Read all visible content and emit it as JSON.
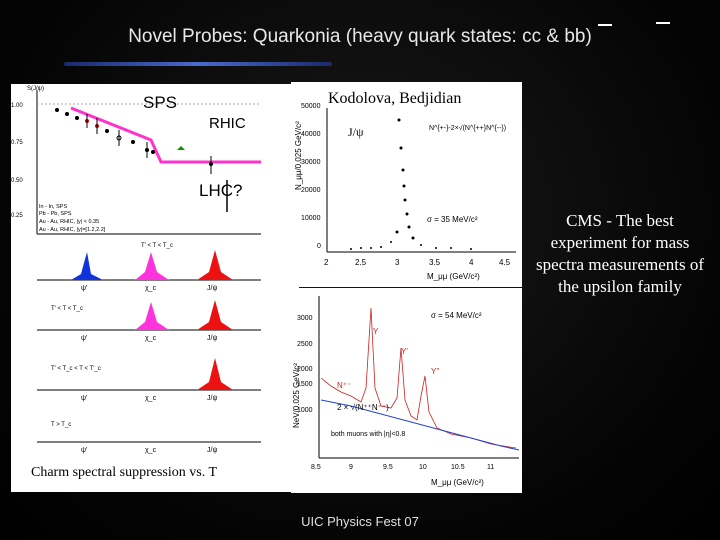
{
  "slide": {
    "title": "Novel Probes: Quarkonia (heavy quark states: cc & bb)",
    "footer": "UIC Physics Fest 07",
    "cms_note": "CMS - The best experiment for mass spectra measurements of the upsilon family"
  },
  "suppression_plot": {
    "ylabel": "S(J/ψ)",
    "labels": {
      "sps": "SPS",
      "rhic": "RHIC",
      "lhc": "LHC?"
    },
    "yticks": [
      "1.00",
      "0.75",
      "0.50",
      "0.25"
    ],
    "legend": [
      "In - In, SPS",
      "Pb - Pb, SPS",
      "Au - Au, RHIC, |y| < 0.35",
      "Au - Au, RHIC, |y|=[1.2,2.2]"
    ],
    "author_credit": "Kodolova, Bedjidian",
    "caption": "Charm spectral suppression vs. T",
    "rows": [
      {
        "title": "T' < T < T_c",
        "peaks": [
          "ψ'",
          "χ_c",
          "J/ψ"
        ]
      },
      {
        "title": "T' < T < T_c",
        "peaks": [
          "ψ'",
          "χ_c",
          "J/ψ"
        ]
      },
      {
        "title": "T' < T_c < T < T'_c",
        "peaks": [
          "ψ'",
          "χ_c",
          "J/ψ"
        ]
      },
      {
        "title": "T > T_c",
        "peaks": [
          "ψ'",
          "χ_c",
          "J/ψ"
        ]
      }
    ]
  },
  "jpsi_plot": {
    "ylabel": "N_μμ/0.025 GeV/c²",
    "xlabel": "M_μμ (GeV/c²)",
    "annotation": "J/ψ",
    "legend": "N^{+-}-2×√(N^{++}N^{--})",
    "sigma": "σ = 35 MeV/c²",
    "yticks": [
      "50000",
      "40000",
      "30000",
      "20000",
      "10000",
      "0"
    ],
    "xticks": [
      "2",
      "2.5",
      "3",
      "3.5",
      "4",
      "4.5"
    ]
  },
  "upsilon_plot": {
    "ylabel": "NeV/0.025 GeV/c²",
    "xlabel": "M_μμ (GeV/c²)",
    "sigma": "σ = 54 MeV/c²",
    "peaks": [
      "Y",
      "Y'",
      "Y''"
    ],
    "legend": [
      "N⁺⁻",
      "2 × √(N⁺⁺N⁻⁻)"
    ],
    "note": "both muons with |η|<0.8",
    "yticks": [
      "3000",
      "2500",
      "2000",
      "1500",
      "1000"
    ],
    "xticks": [
      "8.5",
      "9",
      "9.5",
      "10",
      "10.5",
      "11"
    ]
  },
  "colors": {
    "accent_line": "#ff33cc",
    "blue_peak": "#1133dd",
    "pink_peak": "#ff33dd",
    "red_peak": "#ee1111"
  }
}
